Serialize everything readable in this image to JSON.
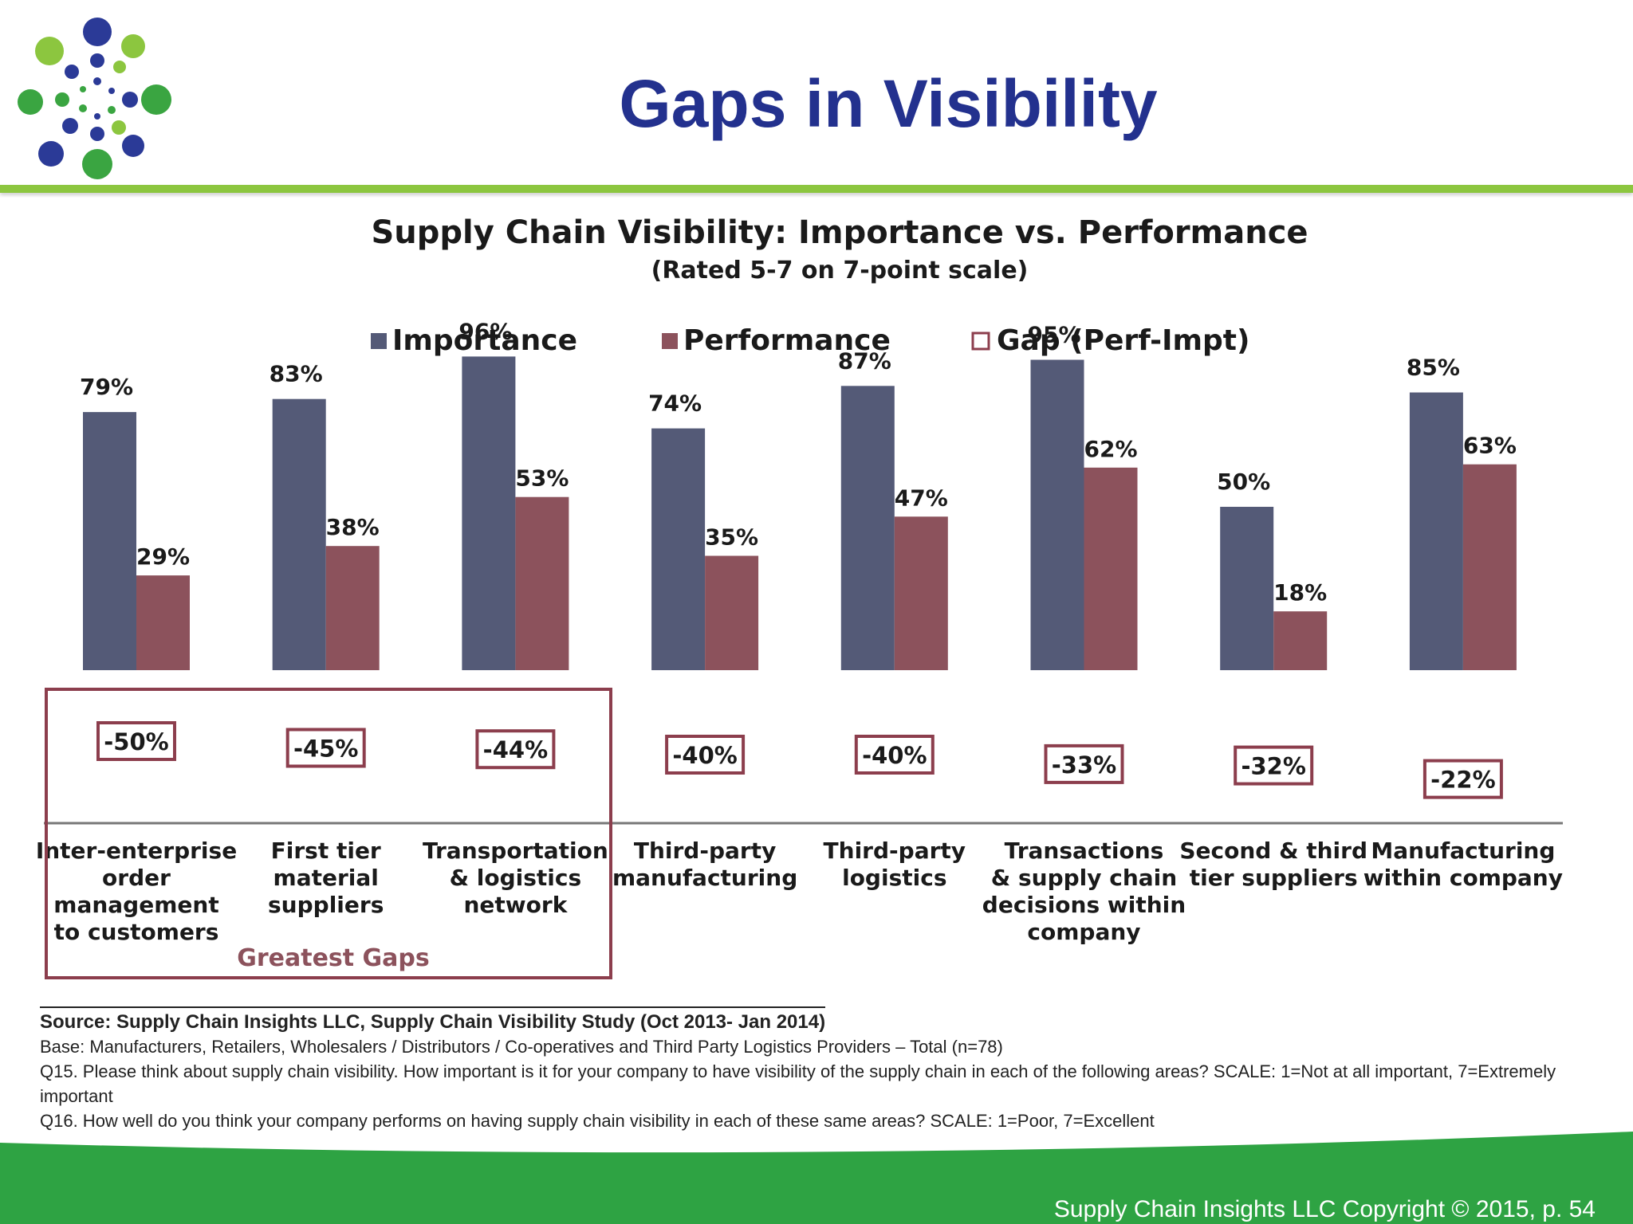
{
  "slide": {
    "title": "Gaps in Visibility",
    "copyright": "Supply Chain Insights LLC Copyright © 2015, p. 54"
  },
  "colors": {
    "title": "#23318e",
    "rule": "#8cc63f",
    "importance": "#545a77",
    "performance": "#8c525c",
    "gap_box": "#8c3e4d",
    "greatest_gaps": "#8c525c",
    "footer_band": "#2ea343"
  },
  "chart_data": {
    "type": "bar",
    "title": "Supply Chain Visibility:  Importance vs. Performance",
    "subtitle": "(Rated 5-7 on 7-point scale)",
    "legend": [
      "Importance",
      "Performance",
      "Gap (Perf-Impt)"
    ],
    "legend_position": "top",
    "categories": [
      [
        "Inter-enterprise",
        "order",
        "management",
        "to customers"
      ],
      [
        "First tier",
        "material",
        "suppliers"
      ],
      [
        "Transportation",
        "& logistics",
        "network"
      ],
      [
        "Third-party",
        "manufacturing"
      ],
      [
        "Third-party",
        "logistics"
      ],
      [
        "Transactions",
        "& supply chain",
        "decisions within",
        "company"
      ],
      [
        "Second & third",
        "tier suppliers"
      ],
      [
        "Manufacturing",
        "within company"
      ]
    ],
    "series": [
      {
        "name": "Importance",
        "values": [
          79,
          83,
          96,
          74,
          87,
          95,
          50,
          85
        ],
        "labels": [
          "79%",
          "83%",
          "96%",
          "74%",
          "87%",
          "95%",
          "50%",
          "85%"
        ]
      },
      {
        "name": "Performance",
        "values": [
          29,
          38,
          53,
          35,
          47,
          62,
          18,
          63
        ],
        "labels": [
          "29%",
          "38%",
          "53%",
          "35%",
          "47%",
          "62%",
          "18%",
          "63%"
        ]
      },
      {
        "name": "Gap (Perf-Impt)",
        "values": [
          -50,
          -45,
          -44,
          -40,
          -40,
          -33,
          -32,
          -22
        ],
        "labels": [
          "-50%",
          "-45%",
          "-44%",
          "-40%",
          "-40%",
          "-33%",
          "-32%",
          "-22%"
        ]
      }
    ],
    "ylim": [
      0,
      100
    ],
    "grid": false,
    "annotation": "Greatest Gaps"
  },
  "footnotes": {
    "source": "Source:  Supply Chain Insights LLC, Supply Chain Visibility Study (Oct 2013- Jan 2014)",
    "base": "Base:  Manufacturers,  Retailers, Wholesalers / Distributors / Co-operatives and Third Party Logistics Providers – Total (n=78)",
    "q15": "Q15. Please think about supply chain visibility. How important is it for your company to have visibility of the supply chain in each of the following areas?  SCALE:  1=Not at all important, 7=Extremely important",
    "q16": "Q16. How well do you think your company performs on having supply chain visibility in each of these same areas?  SCALE: 1=Poor, 7=Excellent"
  }
}
